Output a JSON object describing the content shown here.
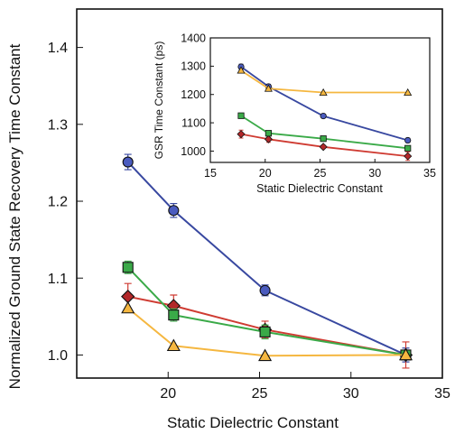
{
  "chart_data": [
    {
      "type": "line",
      "panel": "main",
      "title": "",
      "xlabel": "Static Dielectric Constant",
      "ylabel": "Normalized Ground State Recovery Time Constant",
      "xlim": [
        15,
        35
      ],
      "ylim": [
        0.97,
        1.45
      ],
      "xticks": [
        20,
        25,
        30,
        35
      ],
      "yticks": [
        1.0,
        1.1,
        1.2,
        1.3,
        1.4
      ],
      "grid": false,
      "legend": "none",
      "series": [
        {
          "color": "#3848a0",
          "fill": "#4a5bbf",
          "marker": "circle",
          "x": [
            17.8,
            20.3,
            25.3,
            33.0
          ],
          "y": [
            1.251,
            1.188,
            1.084,
            1.0
          ],
          "err": [
            0.01,
            0.009,
            0.007,
            0.009
          ]
        },
        {
          "color": "#cf3b32",
          "fill": "#b2282a",
          "marker": "diamond",
          "x": [
            17.8,
            20.3,
            25.3,
            33.0
          ],
          "y": [
            1.076,
            1.064,
            1.033,
            1.0
          ],
          "err": [
            0.017,
            0.014,
            0.011,
            0.017
          ]
        },
        {
          "color": "#3aaa48",
          "fill": "#3aaa48",
          "marker": "square",
          "x": [
            17.8,
            20.3,
            25.3,
            33.0
          ],
          "y": [
            1.114,
            1.052,
            1.03,
            1.0
          ],
          "err": [
            0.008,
            0.008,
            0.009,
            0.006
          ]
        },
        {
          "color": "#f5b740",
          "fill": "#f5b740",
          "marker": "triangle",
          "x": [
            17.8,
            20.3,
            25.3,
            33.0
          ],
          "y": [
            1.061,
            1.012,
            0.999,
            1.0
          ],
          "err": [
            0,
            0,
            0,
            0
          ]
        }
      ]
    },
    {
      "type": "line",
      "panel": "inset",
      "title": "",
      "xlabel": "Static Dielectric Constant",
      "ylabel": "GSR Time Constant (ps)",
      "xlim": [
        15,
        35
      ],
      "ylim": [
        960,
        1400
      ],
      "xticks": [
        15,
        20,
        25,
        30,
        35
      ],
      "yticks": [
        1000,
        1100,
        1200,
        1300,
        1400
      ],
      "grid": false,
      "legend": "none",
      "series": [
        {
          "color": "#3848a0",
          "fill": "#4a5bbf",
          "marker": "circle",
          "x": [
            17.8,
            20.3,
            25.3,
            33.0
          ],
          "y": [
            1298,
            1228,
            1124,
            1038
          ],
          "err": [
            9,
            8,
            0,
            8
          ]
        },
        {
          "color": "#cf3b32",
          "fill": "#b2282a",
          "marker": "diamond",
          "x": [
            17.8,
            20.3,
            25.3,
            33.0
          ],
          "y": [
            1060,
            1042,
            1015,
            982
          ],
          "err": [
            14,
            11,
            6,
            15
          ]
        },
        {
          "color": "#3aaa48",
          "fill": "#3aaa48",
          "marker": "square",
          "x": [
            17.8,
            20.3,
            25.3,
            33.0
          ],
          "y": [
            1125,
            1063,
            1044,
            1010
          ],
          "err": [
            0,
            6,
            5,
            4
          ]
        },
        {
          "color": "#f5b740",
          "fill": "#f5b740",
          "marker": "triangle",
          "x": [
            17.8,
            20.3,
            25.3,
            33.0
          ],
          "y": [
            1285,
            1221,
            1207,
            1207
          ],
          "err": [
            0,
            0,
            0,
            0
          ]
        }
      ]
    }
  ]
}
